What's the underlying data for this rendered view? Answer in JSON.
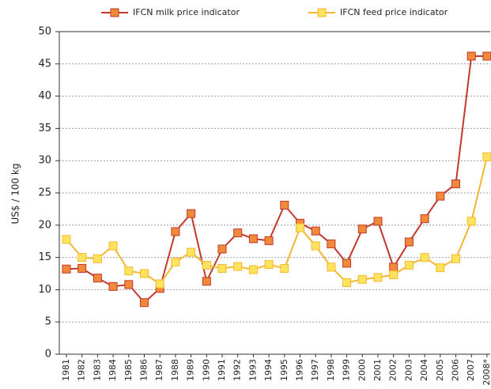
{
  "chart_data": {
    "type": "line",
    "y_label": "US$ / 100 kg",
    "categories": [
      "1981",
      "1982",
      "1983",
      "1984",
      "1985",
      "1986",
      "1987",
      "1988",
      "1989",
      "1990",
      "1991",
      "1992",
      "1993",
      "1994",
      "1995",
      "1996",
      "1997",
      "1998",
      "1999",
      "2000",
      "2001",
      "2002",
      "2003",
      "2004",
      "2005",
      "2006",
      "2007",
      "2008*"
    ],
    "series": [
      {
        "name": "IFCN milk price indicator",
        "color": "#c0392b",
        "marker_color": "#f0893a",
        "values": [
          13.2,
          13.3,
          11.8,
          10.5,
          10.8,
          8,
          10.2,
          19,
          21.8,
          11.3,
          16.3,
          18.8,
          17.9,
          17.6,
          23.1,
          20.3,
          19.1,
          17.1,
          14.1,
          19.4,
          20.6,
          13.5,
          17.4,
          21,
          24.5,
          26.4,
          46.2,
          46.2
        ]
      },
      {
        "name": "IFCN feed price indicator",
        "color": "#f5b731",
        "marker_color": "#ffe35c",
        "values": [
          17.8,
          15,
          14.8,
          16.8,
          12.9,
          12.5,
          10.9,
          14.3,
          15.8,
          13.8,
          13.3,
          13.6,
          13.1,
          13.9,
          13.3,
          19.6,
          16.8,
          13.5,
          11.1,
          11.6,
          11.9,
          12.3,
          13.8,
          15,
          13.4,
          14.8,
          20.6,
          30.6
        ]
      }
    ],
    "ylim": [
      0,
      50
    ],
    "yticks": [
      0,
      5,
      10,
      15,
      20,
      25,
      30,
      35,
      40,
      45,
      50
    ],
    "grid": true,
    "legend": "top"
  }
}
